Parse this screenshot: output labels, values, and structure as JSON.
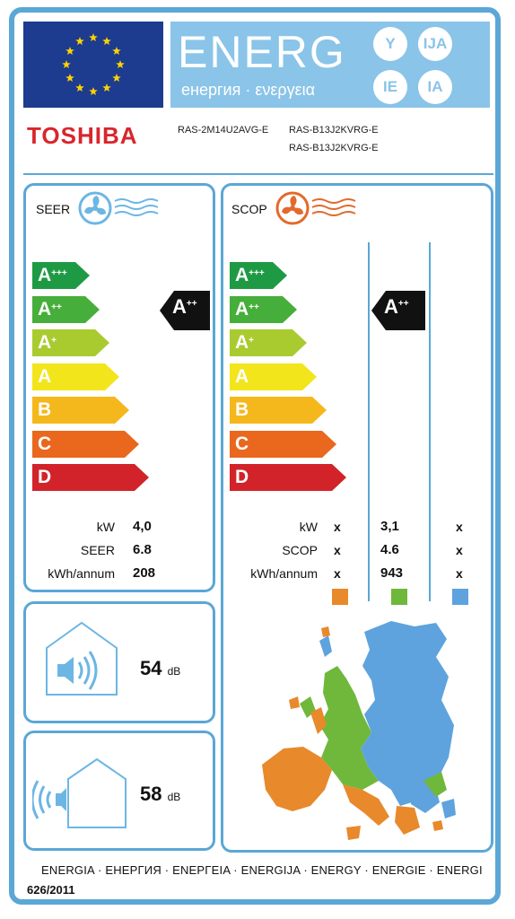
{
  "header": {
    "energy_word": "ENERG",
    "energy_sub": "енергия · ενεργεια",
    "lang_codes": [
      "Y",
      "IJA",
      "IE",
      "IA"
    ],
    "brand": "TOSHIBA",
    "models": [
      "RAS-2M14U2AVG-E",
      "RAS-B13J2KVRG-E",
      "RAS-B13J2KVRG-E"
    ]
  },
  "seer_panel": {
    "title": "SEER",
    "classes": [
      "A+++",
      "A++",
      "A+",
      "A",
      "B",
      "C",
      "D"
    ],
    "rating": "A++",
    "rows": [
      {
        "label": "kW",
        "value": "4,0"
      },
      {
        "label": "SEER",
        "value": "6.8"
      },
      {
        "label": "kWh/annum",
        "value": "208"
      }
    ]
  },
  "scop_panel": {
    "title": "SCOP",
    "classes": [
      "A+++",
      "A++",
      "A+",
      "A",
      "B",
      "C",
      "D"
    ],
    "rating": "A++",
    "rows": [
      {
        "label": "kW",
        "col1": "x",
        "col2": "3,1",
        "col3": "x"
      },
      {
        "label": "SCOP",
        "col1": "x",
        "col2": "4.6",
        "col3": "x"
      },
      {
        "label": "kWh/annum",
        "col1": "x",
        "col2": "943",
        "col3": "x"
      }
    ]
  },
  "noise_indoor": {
    "value": "54",
    "unit": "dB"
  },
  "noise_outdoor": {
    "value": "58",
    "unit": "dB"
  },
  "footer": {
    "languages": "ENERGIA · ЕНЕРГИЯ · ΕΝΕΡΓΕΙΑ · ENERGIJA · ENERGY · ENERGIE · ENERGI",
    "regulation": "626/2011"
  },
  "colors": {
    "frame": "#5ba7d6",
    "brand": "#d8262c",
    "class_colors": [
      "#1f9a44",
      "#46ae3a",
      "#a9cb2f",
      "#f2e51c",
      "#f5b81c",
      "#e9681e",
      "#d2232a"
    ],
    "zone_colors": [
      "#e8892b",
      "#6fb83c",
      "#5ea3dd"
    ]
  },
  "icons": [
    "eu-flag",
    "fan-cool-icon",
    "fan-heat-icon",
    "speaker-indoor-icon",
    "speaker-outdoor-icon",
    "europe-map"
  ]
}
